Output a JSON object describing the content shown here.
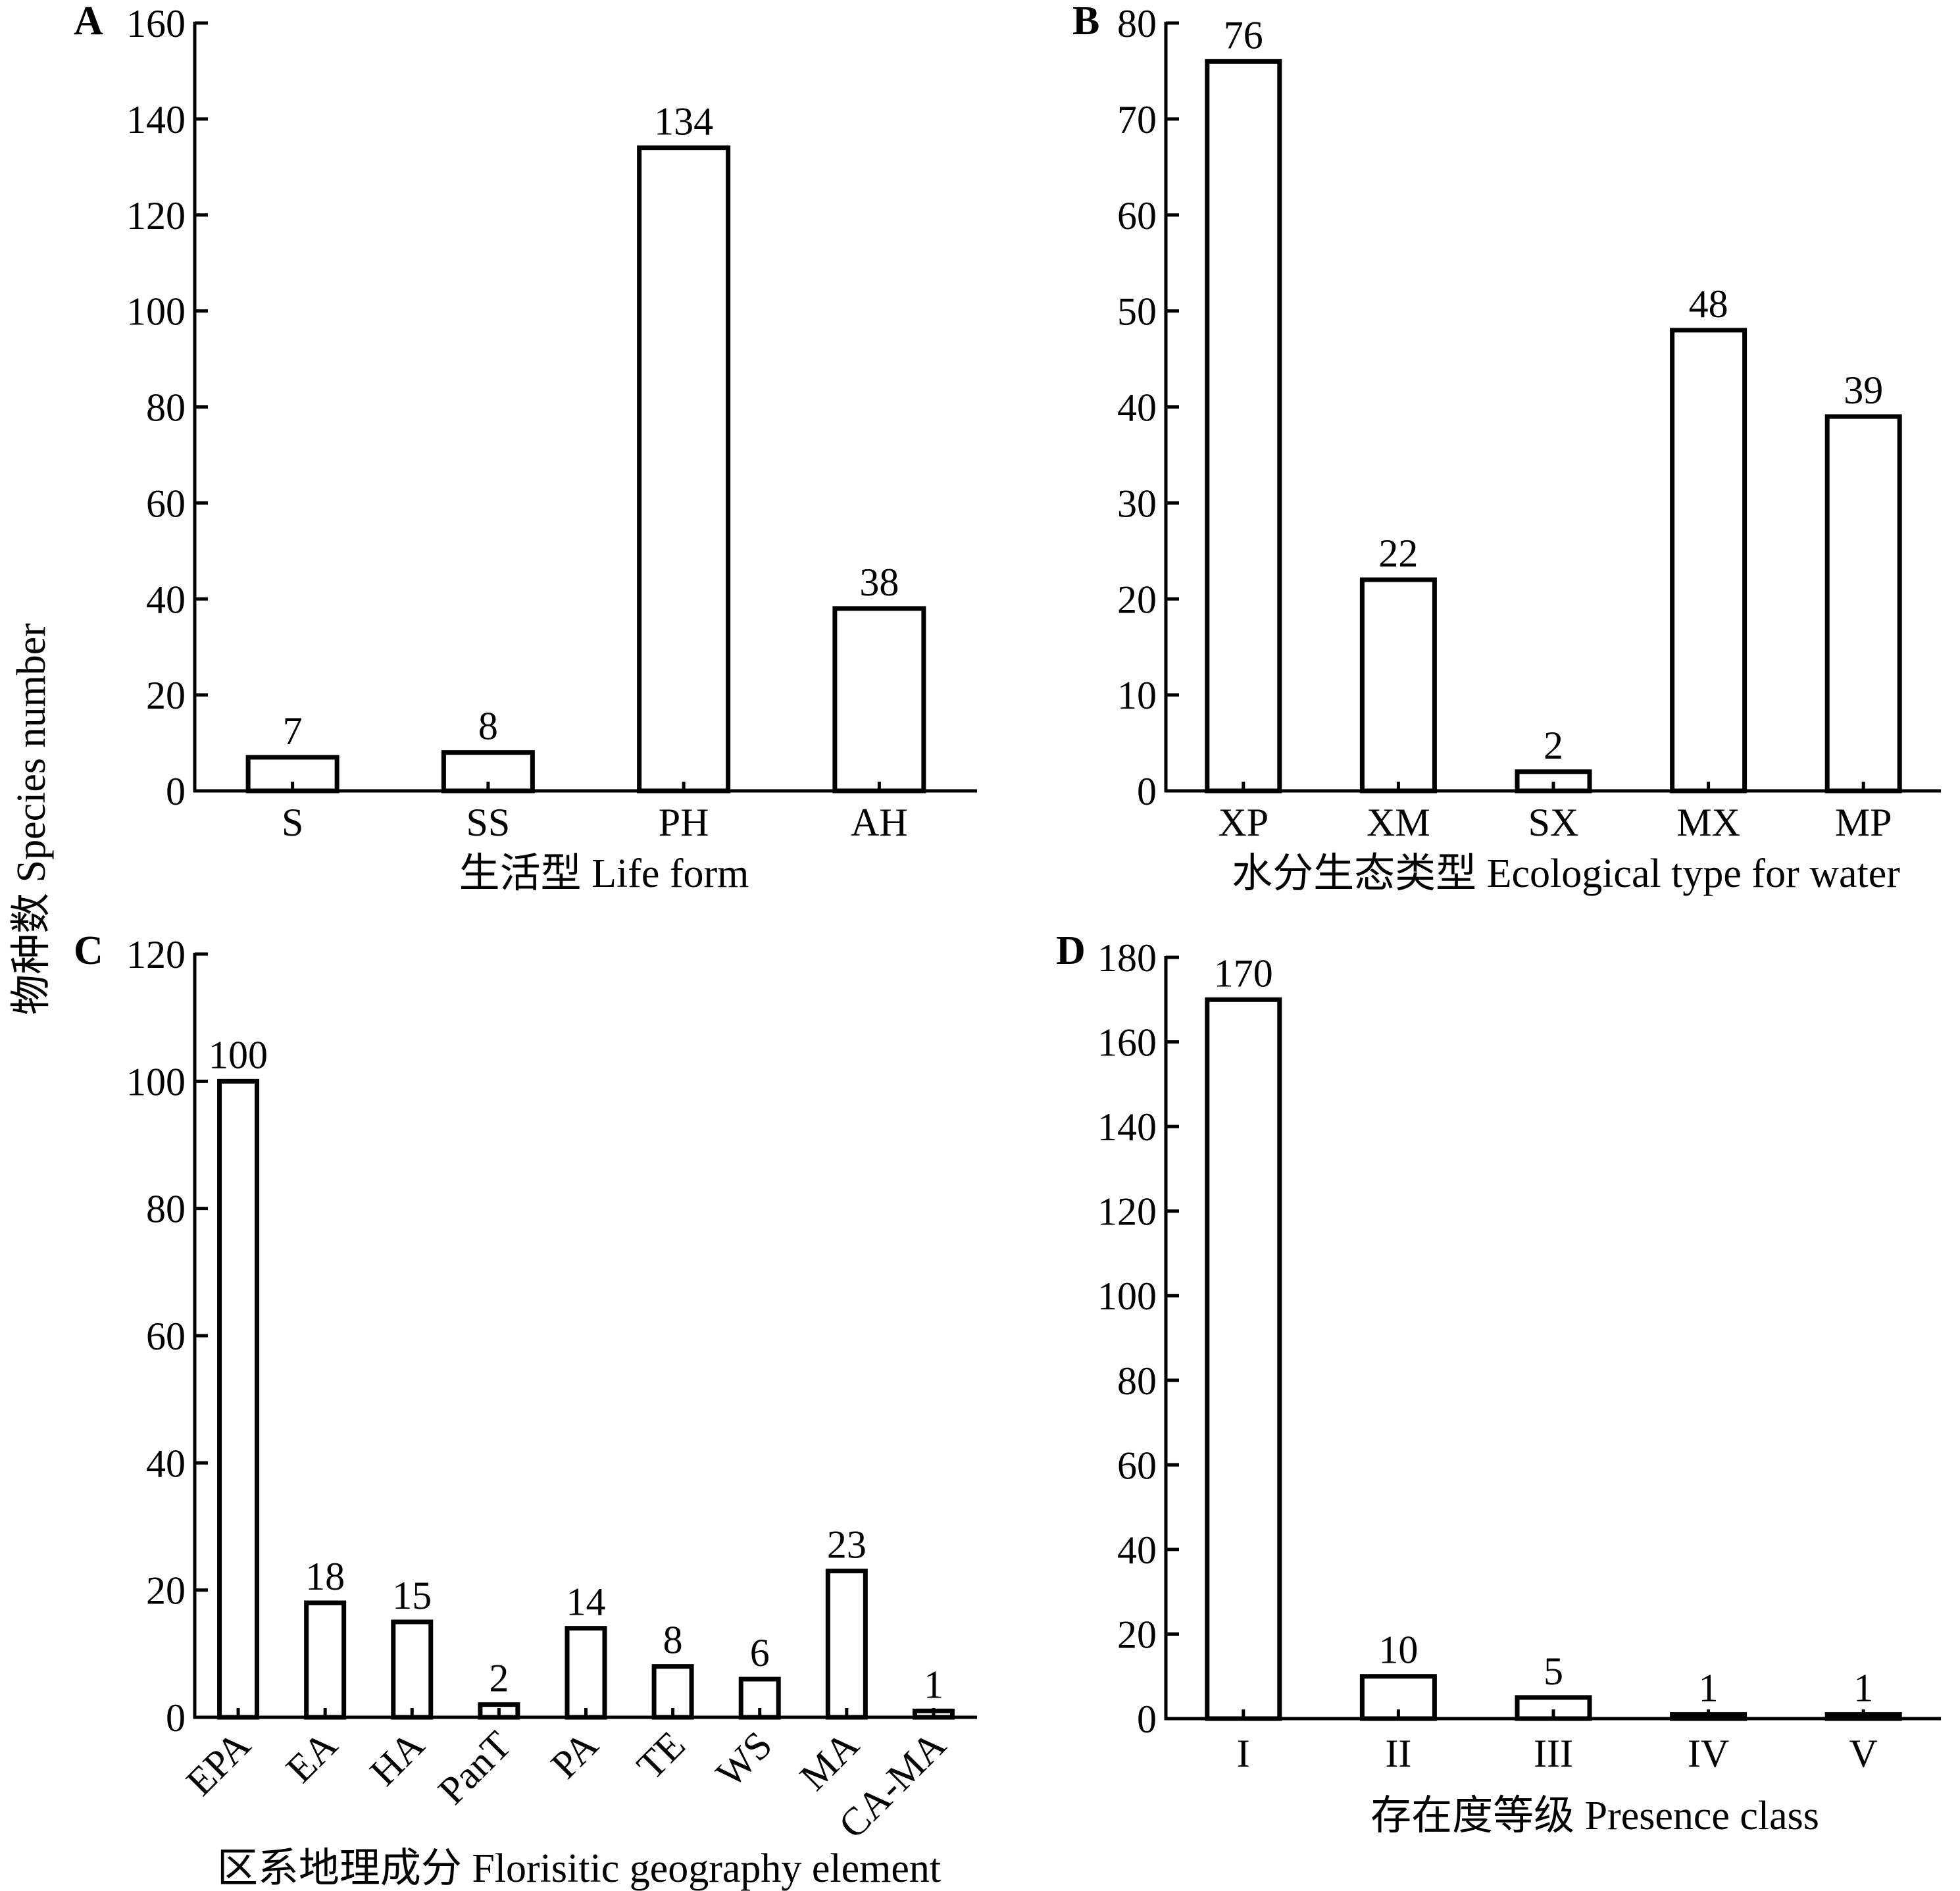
{
  "figure": {
    "shared_ylabel": "物种数 Species number"
  },
  "chart_data": [
    {
      "panel": "A",
      "type": "bar",
      "categories": [
        "S",
        "SS",
        "PH",
        "AH"
      ],
      "values": [
        7,
        8,
        134,
        38
      ],
      "xlabel": "生活型 Life form",
      "ylabel": "物种数 Species number",
      "ylim": [
        0,
        160
      ],
      "yticks": [
        0,
        20,
        40,
        60,
        80,
        100,
        120,
        140,
        160
      ],
      "data_labels": true,
      "grid": false
    },
    {
      "panel": "B",
      "type": "bar",
      "categories": [
        "XP",
        "XM",
        "SX",
        "MX",
        "MP"
      ],
      "values": [
        76,
        22,
        2,
        48,
        39
      ],
      "xlabel": "水分生态类型 Ecological type for water",
      "ylabel": "物种数 Species number",
      "ylim": [
        0,
        80
      ],
      "yticks": [
        0,
        10,
        20,
        30,
        40,
        50,
        60,
        70,
        80
      ],
      "data_labels": true,
      "grid": false
    },
    {
      "panel": "C",
      "type": "bar",
      "categories": [
        "EPA",
        "EA",
        "HA",
        "PanT",
        "PA",
        "TE",
        "WS",
        "MA",
        "CA-MA"
      ],
      "values": [
        100,
        18,
        15,
        2,
        14,
        8,
        6,
        23,
        1
      ],
      "xlabel": "区系地理成分 Florisitic geography element",
      "ylabel": "物种数 Species number",
      "ylim": [
        0,
        120
      ],
      "yticks": [
        0,
        20,
        40,
        60,
        80,
        100,
        120
      ],
      "category_label_rotation": "45 degrees",
      "data_labels": true,
      "grid": false
    },
    {
      "panel": "D",
      "type": "bar",
      "categories": [
        "I",
        "II",
        "III",
        "IV",
        "V"
      ],
      "values": [
        170,
        10,
        5,
        1,
        1
      ],
      "xlabel": "存在度等级 Presence class",
      "ylabel": "物种数 Species number",
      "ylim": [
        0,
        180
      ],
      "yticks": [
        0,
        20,
        40,
        60,
        80,
        100,
        120,
        140,
        160,
        180
      ],
      "data_labels": true,
      "grid": false
    }
  ]
}
